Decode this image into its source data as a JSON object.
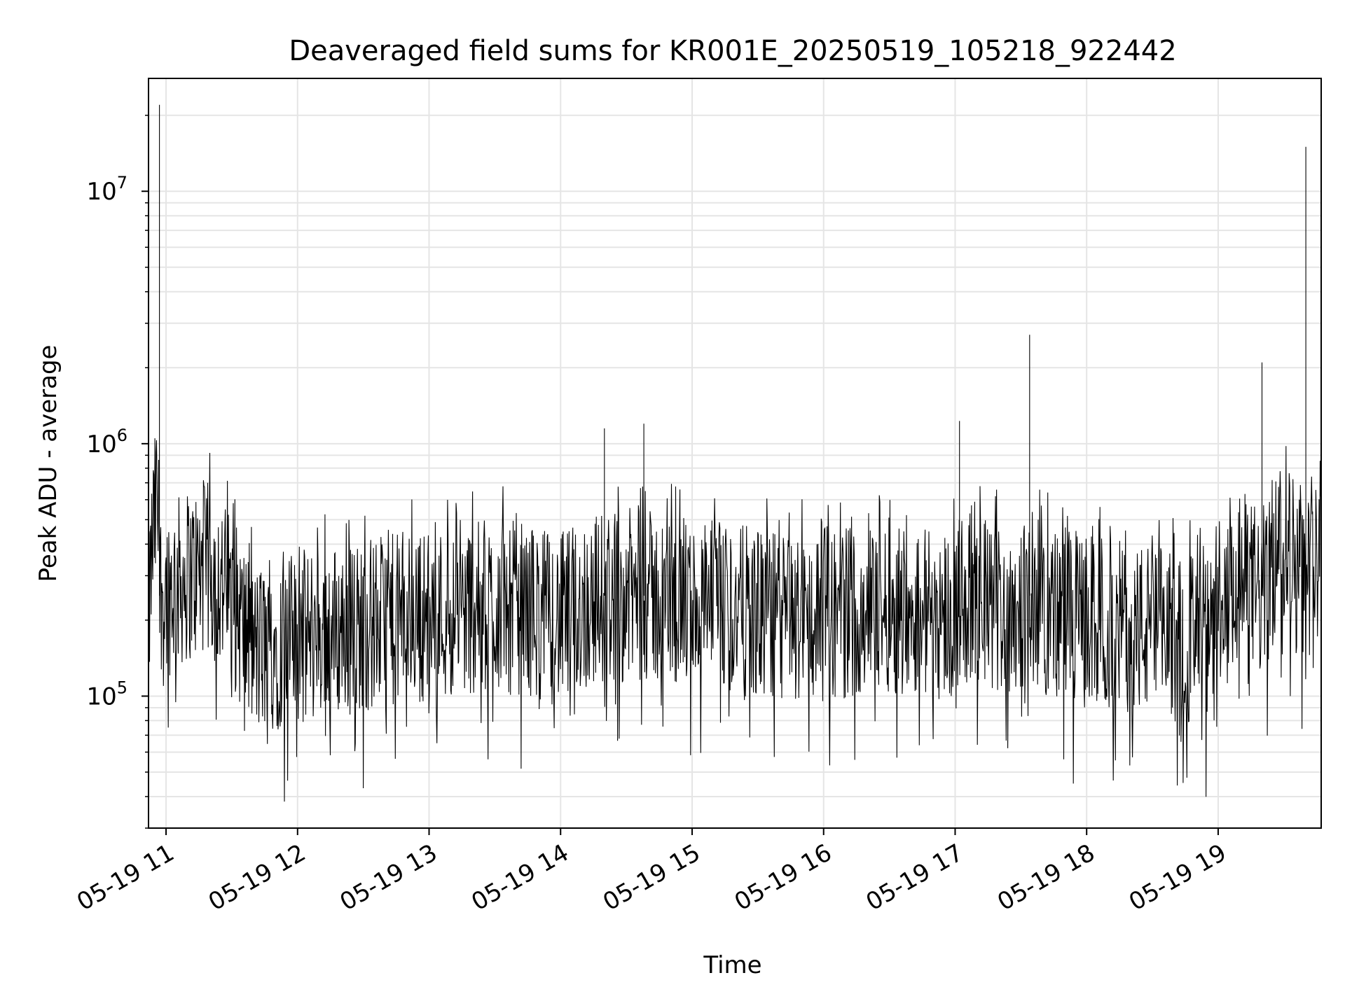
{
  "chart_data": {
    "type": "line",
    "title": "Deaveraged field sums for KR001E_20250519_105218_922442",
    "xlabel": "Time",
    "ylabel": "Peak ADU - average",
    "yscale": "log",
    "ylim": [
      30000,
      28000000
    ],
    "xlim": [
      "2025-05-19 10:52:00",
      "2025-05-19 19:47:00"
    ],
    "grid": true,
    "line_color": "#000000",
    "grid_color": "#e5e5e5",
    "x_ticks": [
      {
        "value": "2025-05-19 11:00",
        "label": "05-19 11"
      },
      {
        "value": "2025-05-19 12:00",
        "label": "05-19 12"
      },
      {
        "value": "2025-05-19 13:00",
        "label": "05-19 13"
      },
      {
        "value": "2025-05-19 14:00",
        "label": "05-19 14"
      },
      {
        "value": "2025-05-19 15:00",
        "label": "05-19 15"
      },
      {
        "value": "2025-05-19 16:00",
        "label": "05-19 16"
      },
      {
        "value": "2025-05-19 17:00",
        "label": "05-19 17"
      },
      {
        "value": "2025-05-19 18:00",
        "label": "05-19 18"
      },
      {
        "value": "2025-05-19 19:00",
        "label": "05-19 19"
      }
    ],
    "y_ticks": [
      {
        "value": 100000,
        "base": "10",
        "exp": "5"
      },
      {
        "value": 1000000,
        "base": "10",
        "exp": "6"
      },
      {
        "value": 10000000,
        "base": "10",
        "exp": "7"
      }
    ],
    "series": [
      {
        "x": [
          "2025-05-19 10:52:00",
          "2025-05-19 10:53:00",
          "2025-05-19 10:54:00",
          "2025-05-19 10:55:00",
          "2025-05-19 10:56:00",
          "2025-05-19 10:57:00",
          "2025-05-19 10:58:00",
          "2025-05-19 10:59:00",
          "2025-05-19 11:00:00",
          "2025-05-19 11:10:00",
          "2025-05-19 11:20:00",
          "2025-05-19 11:30:00",
          "2025-05-19 11:40:00",
          "2025-05-19 11:50:00",
          "2025-05-19 12:00:00",
          "2025-05-19 12:15:00",
          "2025-05-19 12:30:00",
          "2025-05-19 12:45:00",
          "2025-05-19 13:00:00",
          "2025-05-19 13:15:00",
          "2025-05-19 13:30:00",
          "2025-05-19 13:45:00",
          "2025-05-19 14:00:00",
          "2025-05-19 14:15:00",
          "2025-05-19 14:20:00",
          "2025-05-19 14:30:00",
          "2025-05-19 14:38:00",
          "2025-05-19 14:45:00",
          "2025-05-19 15:00:00",
          "2025-05-19 15:15:00",
          "2025-05-19 15:30:00",
          "2025-05-19 15:45:00",
          "2025-05-19 16:00:00",
          "2025-05-19 16:15:00",
          "2025-05-19 16:30:00",
          "2025-05-19 16:45:00",
          "2025-05-19 17:00:00",
          "2025-05-19 17:02:00",
          "2025-05-19 17:15:00",
          "2025-05-19 17:30:00",
          "2025-05-19 17:34:00",
          "2025-05-19 17:45:00",
          "2025-05-19 18:00:00",
          "2025-05-19 18:15:00",
          "2025-05-19 18:30:00",
          "2025-05-19 18:45:00",
          "2025-05-19 19:00:00",
          "2025-05-19 19:10:00",
          "2025-05-19 19:20:00",
          "2025-05-19 19:30:00",
          "2025-05-19 19:40:00",
          "2025-05-19 19:46:00"
        ],
        "values": [
          180000,
          300000,
          420000,
          500000,
          650000,
          22000000,
          280000,
          230000,
          260000,
          300000,
          320000,
          240000,
          150000,
          160000,
          170000,
          180000,
          190000,
          200000,
          210000,
          220000,
          230000,
          220000,
          200000,
          240000,
          1150000,
          250000,
          1200000,
          240000,
          230000,
          220000,
          210000,
          200000,
          210000,
          220000,
          230000,
          220000,
          210000,
          1230000,
          220000,
          230000,
          2700000,
          210000,
          200000,
          190000,
          180000,
          170000,
          160000,
          300000,
          2100000,
          450000,
          15000000,
          600000
        ]
      }
    ]
  }
}
